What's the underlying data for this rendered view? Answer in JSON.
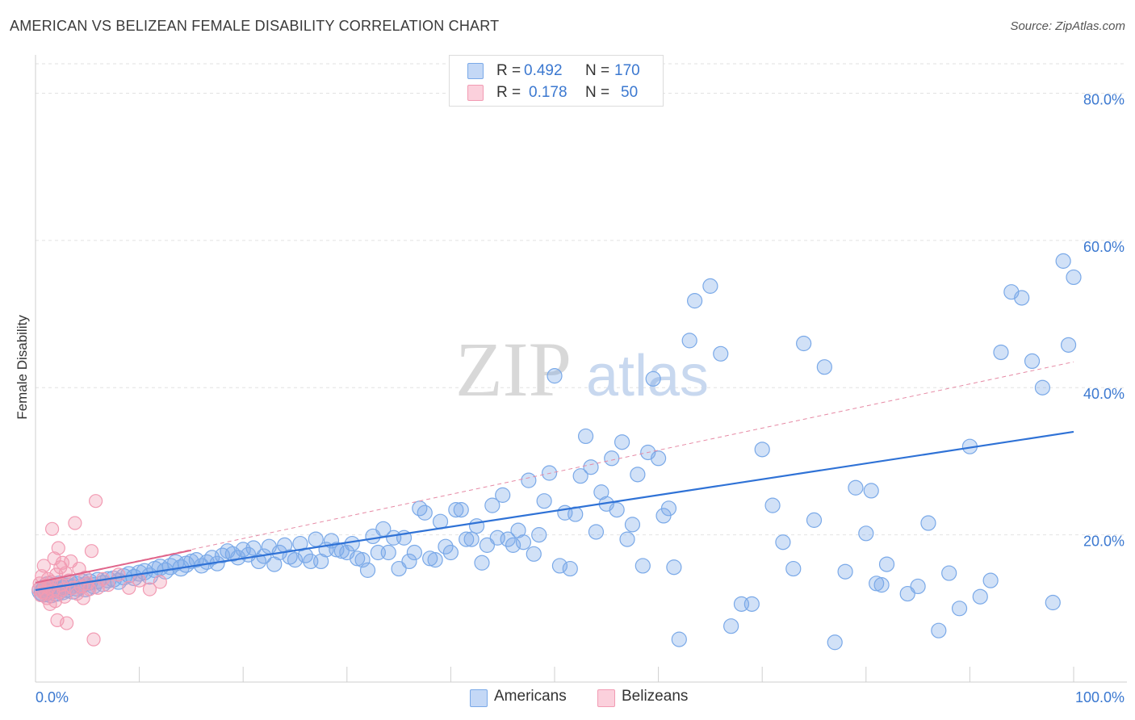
{
  "header": {
    "title": "AMERICAN VS BELIZEAN FEMALE DISABILITY CORRELATION CHART",
    "source": "Source: ZipAtlas.com"
  },
  "watermark": {
    "zip": "ZIP",
    "atlas": "atlas"
  },
  "stats": [
    {
      "r_label": "R =",
      "r_value": "0.492",
      "n_label": "N =",
      "n_value": "170",
      "color": "#7aa9e8"
    },
    {
      "r_label": "R =",
      "r_value": "0.178",
      "n_label": "N =",
      "n_value": "50",
      "color": "#f29bb3"
    }
  ],
  "legend": {
    "americans": "Americans",
    "belizeans": "Belizeans"
  },
  "chart_data": {
    "type": "scatter",
    "title": "AMERICAN VS BELIZEAN FEMALE DISABILITY CORRELATION CHART",
    "xlabel": "",
    "ylabel": "Female Disability",
    "xlim": [
      0,
      100
    ],
    "ylim": [
      0,
      84
    ],
    "x_tick_labels": [
      "0.0%",
      "100.0%"
    ],
    "y_ticks": [
      20,
      40,
      60,
      80
    ],
    "y_tick_labels": [
      "20.0%",
      "40.0%",
      "60.0%",
      "80.0%"
    ],
    "grid": true,
    "series": [
      {
        "name": "Americans",
        "color": "#7aa9e8",
        "r": 0.492,
        "n": 170,
        "trend": {
          "x": [
            0,
            100
          ],
          "y": [
            12.5,
            34.0
          ]
        },
        "points": [
          [
            0.6,
            12.4
          ],
          [
            0.8,
            12.2
          ],
          [
            1.0,
            12.6
          ],
          [
            1.2,
            13.0
          ],
          [
            1.5,
            12.1
          ],
          [
            1.8,
            12.7
          ],
          [
            2.0,
            12.3
          ],
          [
            2.3,
            13.1
          ],
          [
            2.6,
            12.5
          ],
          [
            3.0,
            12.8
          ],
          [
            3.3,
            13.2
          ],
          [
            3.6,
            12.6
          ],
          [
            4.0,
            13.0
          ],
          [
            4.4,
            13.4
          ],
          [
            4.8,
            12.9
          ],
          [
            5.2,
            13.6
          ],
          [
            5.6,
            13.1
          ],
          [
            6.0,
            13.8
          ],
          [
            6.5,
            13.4
          ],
          [
            7.0,
            13.9
          ],
          [
            7.5,
            14.0
          ],
          [
            8.0,
            13.7
          ],
          [
            8.5,
            14.3
          ],
          [
            9.0,
            14.6
          ],
          [
            9.5,
            14.2
          ],
          [
            10.0,
            14.8
          ],
          [
            10.5,
            15.0
          ],
          [
            11.0,
            14.4
          ],
          [
            11.5,
            15.3
          ],
          [
            12.0,
            15.6
          ],
          [
            12.5,
            15.1
          ],
          [
            13.0,
            15.7
          ],
          [
            13.5,
            16.2
          ],
          [
            14.0,
            15.5
          ],
          [
            14.5,
            16.0
          ],
          [
            15.0,
            16.4
          ],
          [
            15.5,
            16.6
          ],
          [
            16.0,
            15.8
          ],
          [
            16.5,
            16.3
          ],
          [
            17.0,
            16.9
          ],
          [
            17.5,
            16.1
          ],
          [
            18.0,
            17.2
          ],
          [
            18.5,
            17.8
          ],
          [
            19.0,
            17.4
          ],
          [
            19.5,
            16.9
          ],
          [
            20.0,
            18.0
          ],
          [
            20.5,
            17.3
          ],
          [
            21.0,
            18.2
          ],
          [
            21.5,
            16.4
          ],
          [
            22.0,
            17.1
          ],
          [
            22.5,
            18.4
          ],
          [
            23.0,
            16.0
          ],
          [
            23.5,
            17.6
          ],
          [
            24.0,
            18.6
          ],
          [
            24.5,
            17.0
          ],
          [
            25.0,
            16.6
          ],
          [
            25.5,
            18.8
          ],
          [
            26.0,
            17.2
          ],
          [
            26.5,
            16.4
          ],
          [
            27.0,
            19.4
          ],
          [
            27.5,
            16.4
          ],
          [
            28.0,
            18.0
          ],
          [
            28.5,
            19.2
          ],
          [
            29.0,
            18.0
          ],
          [
            29.5,
            17.8
          ],
          [
            30.0,
            17.6
          ],
          [
            30.5,
            18.8
          ],
          [
            31.0,
            16.8
          ],
          [
            31.5,
            16.6
          ],
          [
            32.0,
            15.2
          ],
          [
            32.5,
            19.8
          ],
          [
            33.0,
            17.6
          ],
          [
            33.5,
            20.8
          ],
          [
            34.0,
            17.6
          ],
          [
            34.5,
            19.6
          ],
          [
            35.0,
            15.4
          ],
          [
            35.5,
            19.6
          ],
          [
            36.0,
            16.4
          ],
          [
            36.5,
            17.6
          ],
          [
            37.0,
            23.6
          ],
          [
            37.5,
            23.0
          ],
          [
            38.0,
            16.8
          ],
          [
            38.5,
            16.6
          ],
          [
            39.0,
            21.8
          ],
          [
            39.5,
            18.4
          ],
          [
            40.0,
            17.6
          ],
          [
            40.5,
            23.4
          ],
          [
            41.0,
            23.4
          ],
          [
            41.5,
            19.4
          ],
          [
            42.0,
            19.4
          ],
          [
            42.5,
            21.2
          ],
          [
            43.0,
            16.2
          ],
          [
            43.5,
            18.6
          ],
          [
            44.0,
            24.0
          ],
          [
            44.5,
            19.6
          ],
          [
            45.0,
            25.4
          ],
          [
            45.5,
            19.4
          ],
          [
            46.0,
            18.6
          ],
          [
            46.5,
            20.6
          ],
          [
            47.0,
            19.0
          ],
          [
            47.5,
            27.4
          ],
          [
            48.0,
            17.4
          ],
          [
            48.5,
            20.0
          ],
          [
            49.0,
            24.6
          ],
          [
            49.5,
            28.4
          ],
          [
            50.0,
            41.6
          ],
          [
            50.5,
            15.8
          ],
          [
            51.0,
            23.0
          ],
          [
            51.5,
            15.4
          ],
          [
            52.0,
            22.8
          ],
          [
            52.5,
            28.0
          ],
          [
            53.0,
            33.4
          ],
          [
            53.5,
            29.2
          ],
          [
            54.0,
            20.4
          ],
          [
            54.5,
            25.8
          ],
          [
            55.0,
            24.2
          ],
          [
            55.5,
            30.4
          ],
          [
            56.0,
            23.4
          ],
          [
            56.5,
            32.6
          ],
          [
            57.0,
            19.4
          ],
          [
            57.5,
            21.4
          ],
          [
            58.0,
            28.2
          ],
          [
            58.5,
            15.8
          ],
          [
            59.0,
            31.2
          ],
          [
            59.5,
            41.2
          ],
          [
            60.0,
            30.4
          ],
          [
            60.5,
            22.6
          ],
          [
            61.0,
            23.6
          ],
          [
            61.5,
            15.6
          ],
          [
            62.0,
            5.8
          ],
          [
            63.0,
            46.4
          ],
          [
            63.5,
            51.8
          ],
          [
            65.0,
            53.8
          ],
          [
            66.0,
            44.6
          ],
          [
            67.0,
            7.6
          ],
          [
            68.0,
            10.6
          ],
          [
            69.0,
            10.6
          ],
          [
            70.0,
            31.6
          ],
          [
            71.0,
            24.0
          ],
          [
            72.0,
            19.0
          ],
          [
            73.0,
            15.4
          ],
          [
            74.0,
            46.0
          ],
          [
            75.0,
            22.0
          ],
          [
            76.0,
            42.8
          ],
          [
            77.0,
            5.4
          ],
          [
            78.0,
            15.0
          ],
          [
            79.0,
            26.4
          ],
          [
            80.0,
            20.2
          ],
          [
            80.5,
            26.0
          ],
          [
            81.0,
            13.4
          ],
          [
            81.5,
            13.2
          ],
          [
            82.0,
            16.0
          ],
          [
            84.0,
            12.0
          ],
          [
            85.0,
            13.0
          ],
          [
            86.0,
            21.6
          ],
          [
            87.0,
            7.0
          ],
          [
            88.0,
            14.8
          ],
          [
            89.0,
            10.0
          ],
          [
            90.0,
            32.0
          ],
          [
            91.0,
            11.6
          ],
          [
            92.0,
            13.8
          ],
          [
            93.0,
            44.8
          ],
          [
            94.0,
            53.0
          ],
          [
            95.0,
            52.2
          ],
          [
            96.0,
            43.6
          ],
          [
            97.0,
            40.0
          ],
          [
            98.0,
            10.8
          ],
          [
            99.0,
            57.2
          ],
          [
            99.5,
            45.8
          ],
          [
            100.0,
            55.0
          ]
        ]
      },
      {
        "name": "Belizeans",
        "color": "#f29bb3",
        "r": 0.178,
        "n": 50,
        "trend": {
          "x": [
            0,
            15
          ],
          "y": [
            13.5,
            17.9
          ]
        },
        "trend_extended": {
          "x": [
            0,
            100
          ],
          "y": [
            13.5,
            43.5
          ]
        },
        "points": [
          [
            0.3,
            12.6
          ],
          [
            0.4,
            13.4
          ],
          [
            0.5,
            11.8
          ],
          [
            0.6,
            14.4
          ],
          [
            0.7,
            12.2
          ],
          [
            0.8,
            15.8
          ],
          [
            0.9,
            13.0
          ],
          [
            1.0,
            12.0
          ],
          [
            1.1,
            11.4
          ],
          [
            1.2,
            14.0
          ],
          [
            1.3,
            12.8
          ],
          [
            1.4,
            10.6
          ],
          [
            1.5,
            13.6
          ],
          [
            1.6,
            20.8
          ],
          [
            1.7,
            12.4
          ],
          [
            1.8,
            16.8
          ],
          [
            1.9,
            11.0
          ],
          [
            2.0,
            14.6
          ],
          [
            2.1,
            8.4
          ],
          [
            2.2,
            18.2
          ],
          [
            2.3,
            12.2
          ],
          [
            2.4,
            15.6
          ],
          [
            2.5,
            13.2
          ],
          [
            2.6,
            16.2
          ],
          [
            2.7,
            12.6
          ],
          [
            2.8,
            11.6
          ],
          [
            2.9,
            14.8
          ],
          [
            3.0,
            8.0
          ],
          [
            3.2,
            13.8
          ],
          [
            3.4,
            16.4
          ],
          [
            3.6,
            12.8
          ],
          [
            3.8,
            21.6
          ],
          [
            4.0,
            12.0
          ],
          [
            4.2,
            15.4
          ],
          [
            4.4,
            13.0
          ],
          [
            4.6,
            11.4
          ],
          [
            4.8,
            14.2
          ],
          [
            5.0,
            13.4
          ],
          [
            5.2,
            12.6
          ],
          [
            5.4,
            17.8
          ],
          [
            5.6,
            5.8
          ],
          [
            5.8,
            24.6
          ],
          [
            6.0,
            12.8
          ],
          [
            6.5,
            14.0
          ],
          [
            7.0,
            13.2
          ],
          [
            8.0,
            14.6
          ],
          [
            9.0,
            12.8
          ],
          [
            10.0,
            13.8
          ],
          [
            11.0,
            12.6
          ],
          [
            12.0,
            13.6
          ]
        ]
      }
    ]
  }
}
